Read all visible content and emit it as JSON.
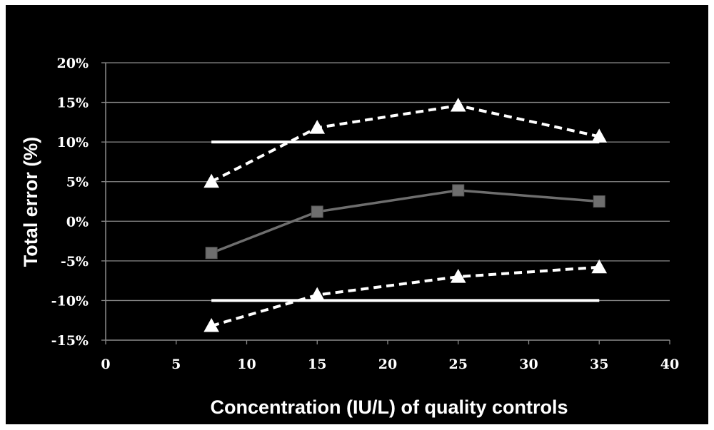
{
  "chart_data": {
    "type": "line",
    "title": "",
    "xlabel": "Concentration (IU/L) of quality controls",
    "ylabel": "Total error (%)",
    "xlim": [
      0,
      40
    ],
    "ylim": [
      -15,
      20
    ],
    "x_ticks": [
      0,
      5,
      10,
      15,
      20,
      25,
      30,
      35,
      40
    ],
    "x_tick_labels": [
      "0",
      "5",
      "10",
      "15",
      "20",
      "25",
      "30",
      "35",
      "40"
    ],
    "y_ticks": [
      -15,
      -10,
      -5,
      0,
      5,
      10,
      15,
      20
    ],
    "y_tick_labels": [
      "-15%",
      "-10%",
      "-5%",
      "0%",
      "5%",
      "10%",
      "15%",
      "20%"
    ],
    "grid": "horizontal",
    "legend": "none",
    "background": "#000000",
    "series": [
      {
        "style": "dashed-triangle",
        "color": "#ffffff",
        "x": [
          7.5,
          15,
          25,
          35
        ],
        "y": [
          5.0,
          11.8,
          14.6,
          10.7
        ]
      },
      {
        "style": "solid-square",
        "color": "#6e6e6e",
        "x": [
          7.5,
          15,
          25,
          35
        ],
        "y": [
          -4.0,
          1.2,
          3.9,
          2.5
        ]
      },
      {
        "style": "dashed-triangle",
        "color": "#ffffff",
        "x": [
          7.5,
          15,
          25,
          35
        ],
        "y": [
          -13.2,
          -9.3,
          -7.0,
          -5.8
        ]
      },
      {
        "style": "solid-line",
        "color": "#ffffff",
        "x": [
          7.5,
          35
        ],
        "y": [
          10,
          10
        ]
      },
      {
        "style": "solid-line",
        "color": "#ffffff",
        "x": [
          7.5,
          35
        ],
        "y": [
          -10,
          -10
        ]
      }
    ]
  }
}
